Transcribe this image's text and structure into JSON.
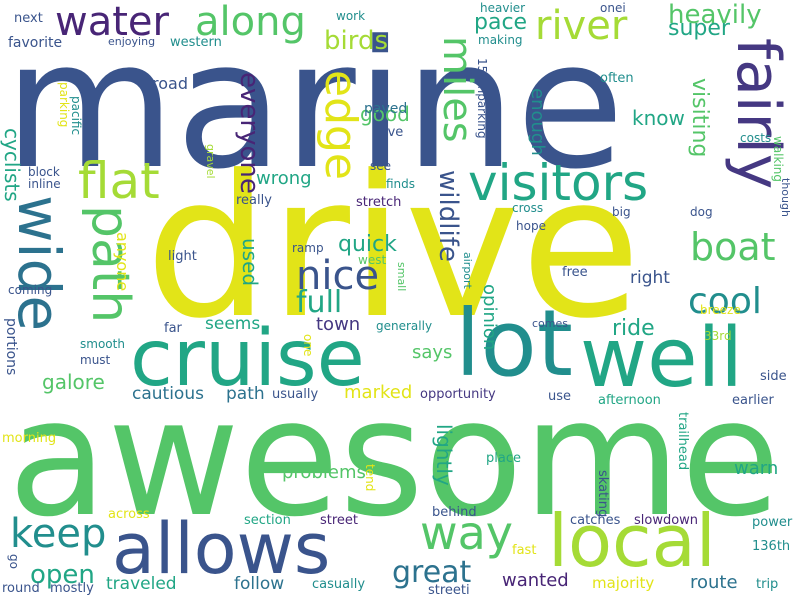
{
  "palette": {
    "yellow": "#e2e418",
    "lime": "#a5db36",
    "green": "#54c568",
    "teal_green": "#21a685",
    "teal": "#218e8d",
    "steel": "#2c728e",
    "blue": "#3a548c",
    "indigo": "#453882",
    "purple": "#482576"
  },
  "words": {
    "w_marine": "marine",
    "w_drive": "drive",
    "w_awesome": "awesome",
    "w_lot": "lot",
    "w_cruise": "cruise",
    "w_well": "well",
    "w_allows": "allows",
    "w_local": "local",
    "w_visitors": "visitors",
    "w_fairly": "fairly",
    "w_wide": "wide",
    "w_path": "path",
    "w_water": "water",
    "w_along": "along",
    "w_river": "river",
    "w_flat": "flat",
    "w_edge": "edge",
    "w_miles": "miles",
    "w_boat": "boat",
    "w_cool": "cool",
    "w_way": "way",
    "w_keep": "keep",
    "w_nice": "nice",
    "w_full": "full",
    "w_everyone": "everyone",
    "w_wildlife": "wildlife",
    "w_heavily": "heavily",
    "w_super": "super",
    "w_birds": "birds",
    "w_pace": "pace",
    "w_great": "great",
    "w_open": "open",
    "w_galore": "galore",
    "w_cautious": "cautious",
    "w_path2": "path",
    "w_marked": "marked",
    "w_says": "says",
    "w_ride": "ride",
    "w_town": "town",
    "w_seems": "seems",
    "w_quick": "quick",
    "w_used": "used",
    "w_wrong": "wrong",
    "w_good": "good",
    "w_paved": "paved",
    "w_know": "know",
    "w_visiting": "visiting",
    "w_enough": "enough",
    "w_lightly": "lightly",
    "w_opinion": "opinion",
    "w_problems": "problems",
    "w_warn": "warn",
    "w_wanted": "wanted",
    "w_route": "route",
    "w_majority": "majority",
    "w_follow": "follow",
    "w_traveled": "traveled",
    "w_cyclists": "cyclists",
    "w_anyone": "anyone",
    "w_right": "right",
    "w_road": "road",
    "w_favorite": "favorite",
    "w_western": "western",
    "w_enjoying": "enjoying",
    "w_next": "next",
    "w_work": "work",
    "w_heavier": "heavier",
    "w_making": "making",
    "w_onei": "onei",
    "w_often": "often",
    "w_pacific": "pacific",
    "w_parking": "parking",
    "w_parking158": "158thparking",
    "w_love": "love",
    "w_costs": "costs",
    "w_walking": "walking",
    "w_though": "though",
    "w_gravel": "gravel",
    "w_see": "see",
    "w_finds": "finds",
    "w_stretch": "stretch",
    "w_really": "really",
    "w_block": "block",
    "w_inline": "inline",
    "w_cross": "cross",
    "w_big": "big",
    "w_dog": "dog",
    "w_hope": "hope",
    "w_airport": "airport",
    "w_west": "west",
    "w_small": "small",
    "w_light": "light",
    "w_ramp": "ramp",
    "w_coming": "coming",
    "w_free": "free",
    "w_breeze": "breeze",
    "w_bit": "bit",
    "w_far": "far",
    "w_generally": "generally",
    "w_comes": "comes",
    "w_33rd": "33rd",
    "w_portions": "portions",
    "w_smooth": "smooth",
    "w_must": "must",
    "w_one": "one",
    "w_usually": "usually",
    "w_opportunity": "opportunity",
    "w_use": "use",
    "w_afternoon": "afternoon",
    "w_earlier": "earlier",
    "w_side": "side",
    "w_morning": "morning",
    "w_place": "place",
    "w_trailhead": "trailhead",
    "w_tend": "tend",
    "w_skating": "skating",
    "w_across": "across",
    "w_behind": "behind",
    "w_section": "section",
    "w_street": "street",
    "w_catches": "catches",
    "w_slowdown": "slowdown",
    "w_power": "power",
    "w_go": "go",
    "w_136th": "136th",
    "w_fast": "fast",
    "w_round": "round",
    "w_mostly": "mostly",
    "w_casually": "casually",
    "w_streeti": "streeti",
    "w_trip": "trip"
  }
}
